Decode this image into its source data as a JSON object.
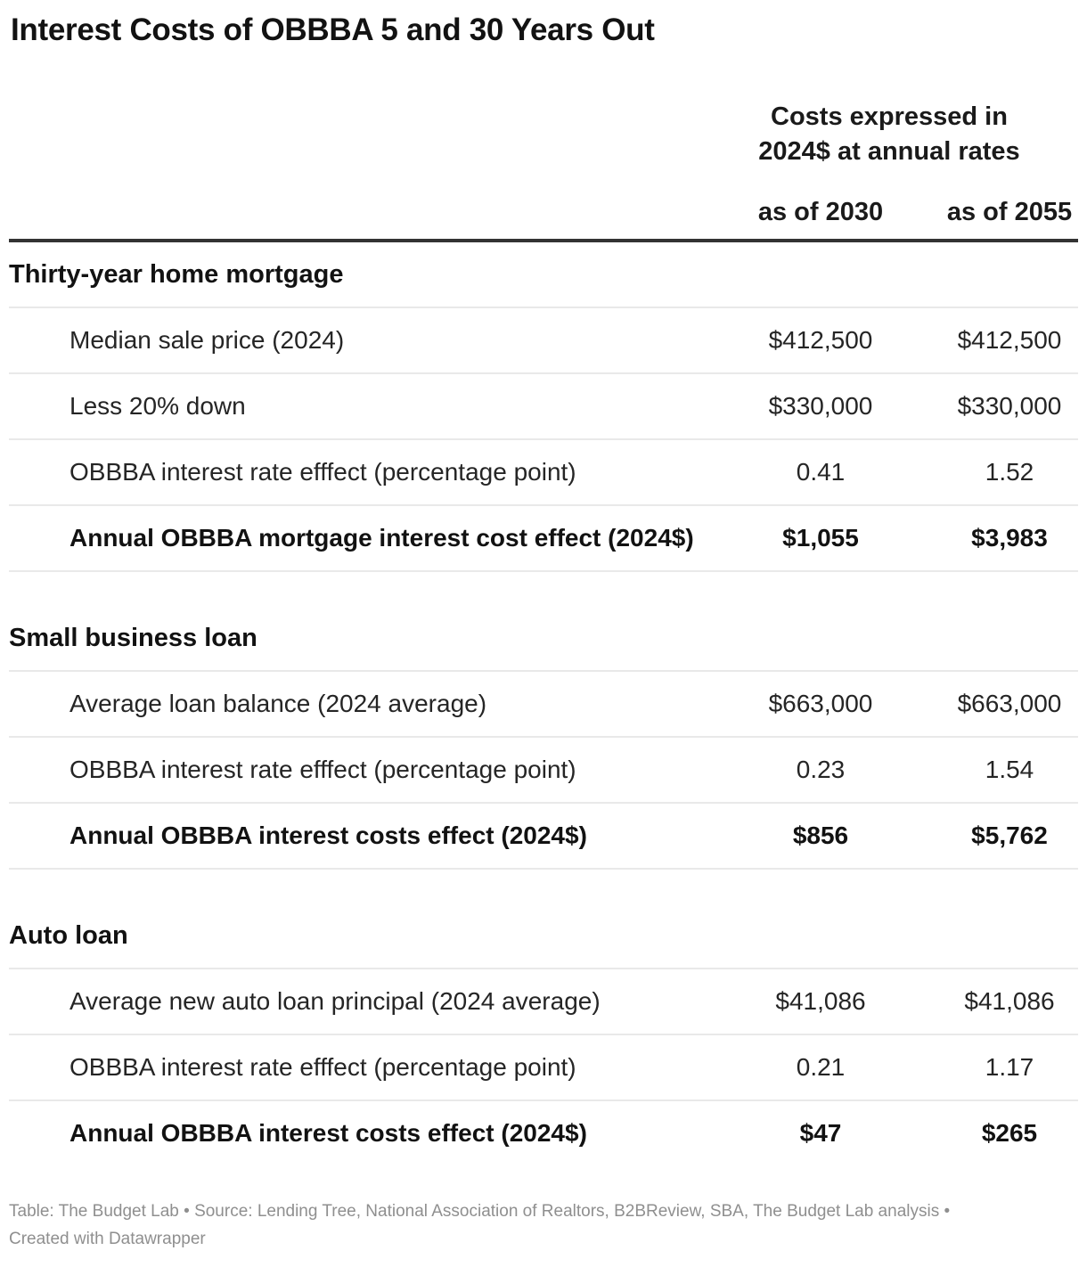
{
  "title": "Interest Costs of OBBBA 5 and 30 Years Out",
  "header": {
    "group_line1": "Costs expressed in",
    "group_line2": "2024$ at annual rates"
  },
  "chart_data": {
    "type": "table",
    "title": "Interest Costs of OBBBA 5 and 30 Years Out",
    "column_group_header": "Costs expressed in 2024$ at annual rates",
    "columns": [
      "as of 2030",
      "as of 2055"
    ],
    "sections": [
      {
        "header": "Thirty-year home mortgage",
        "rows": [
          {
            "label": "Median sale price (2024)",
            "values": [
              "$412,500",
              "$412,500"
            ],
            "emphasis": false
          },
          {
            "label": "Less 20% down",
            "values": [
              "$330,000",
              "$330,000"
            ],
            "emphasis": false
          },
          {
            "label": "OBBBA interest rate efffect (percentage point)",
            "values": [
              "0.41",
              "1.52"
            ],
            "emphasis": false
          },
          {
            "label": "Annual OBBBA mortgage interest cost effect (2024$)",
            "values": [
              "$1,055",
              "$3,983"
            ],
            "emphasis": true
          }
        ]
      },
      {
        "header": "Small business loan",
        "rows": [
          {
            "label": "Average loan balance (2024 average)",
            "values": [
              "$663,000",
              "$663,000"
            ],
            "emphasis": false
          },
          {
            "label": "OBBBA interest rate efffect (percentage point)",
            "values": [
              "0.23",
              "1.54"
            ],
            "emphasis": false
          },
          {
            "label": "Annual OBBBA interest costs effect (2024$)",
            "values": [
              "$856",
              "$5,762"
            ],
            "emphasis": true
          }
        ]
      },
      {
        "header": "Auto loan",
        "rows": [
          {
            "label": "Average new auto loan principal (2024 average)",
            "values": [
              "$41,086",
              "$41,086"
            ],
            "emphasis": false
          },
          {
            "label": "OBBBA interest rate efffect (percentage point)",
            "values": [
              "0.21",
              "1.17"
            ],
            "emphasis": false
          },
          {
            "label": "Annual OBBBA interest costs effect (2024$)",
            "values": [
              "$47",
              "$265"
            ],
            "emphasis": true
          }
        ]
      }
    ]
  },
  "footer": {
    "line1": "Table: The Budget Lab • Source: Lending Tree, National Association of Realtors, B2BReview, SBA, The Budget Lab analysis •",
    "line2": "Created with Datawrapper"
  },
  "colors": {
    "text": "#1f1f1f",
    "title": "#121212",
    "header_rule": "#333333",
    "row_rule": "#e9e9e9",
    "footer_text": "#8f8f8f",
    "background": "#ffffff"
  }
}
